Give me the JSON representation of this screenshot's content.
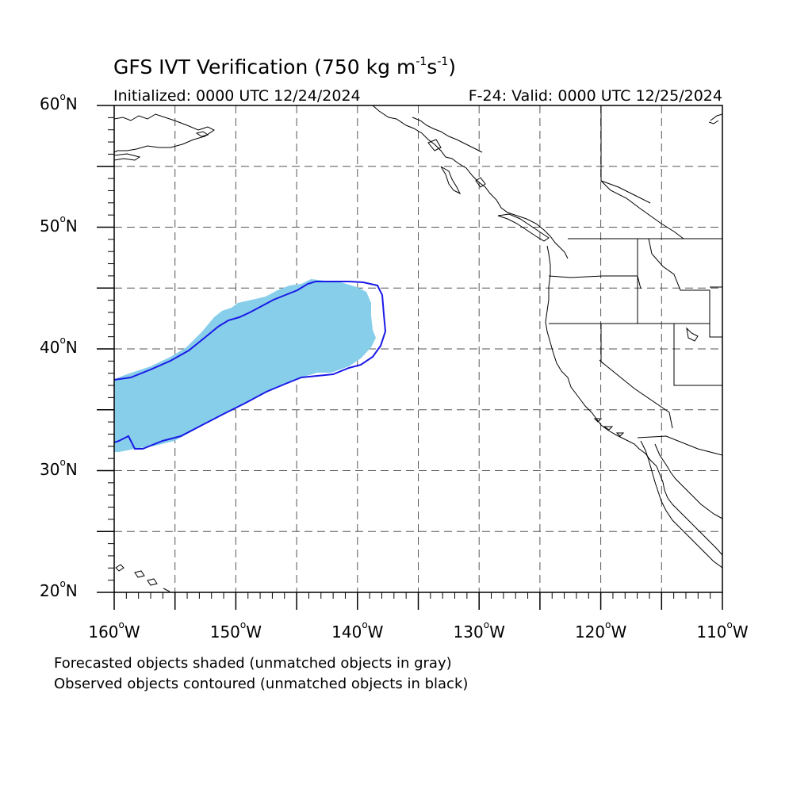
{
  "title": {
    "main": "GFS IVT Verification (750 kg m",
    "exp1": "-1",
    "mid": "s",
    "exp2": "-1",
    "end": ")"
  },
  "subtitle": {
    "left": "Initialized: 0000 UTC 12/24/2024",
    "right": "F-24: Valid: 0000 UTC 12/25/2024"
  },
  "latitude_labels": [
    {
      "text": "60",
      "suffix": "N",
      "lat": 60
    },
    {
      "text": "50",
      "suffix": "N",
      "lat": 50
    },
    {
      "text": "40",
      "suffix": "N",
      "lat": 40
    },
    {
      "text": "30",
      "suffix": "N",
      "lat": 30
    },
    {
      "text": "20",
      "suffix": "N",
      "lat": 20
    }
  ],
  "longitude_labels": [
    {
      "text": "160",
      "suffix": "W",
      "lon": -160
    },
    {
      "text": "150",
      "suffix": "W",
      "lon": -150
    },
    {
      "text": "140",
      "suffix": "W",
      "lon": -140
    },
    {
      "text": "130",
      "suffix": "W",
      "lon": -130
    },
    {
      "text": "120",
      "suffix": "W",
      "lon": -120
    },
    {
      "text": "110",
      "suffix": "W",
      "lon": -110
    }
  ],
  "map": {
    "lon_range": [
      -160,
      -110
    ],
    "lat_range": [
      20,
      60
    ],
    "grid_interval_deg": 5,
    "forecast_color": "#87ceeb",
    "observed_color": "#1a1ae6",
    "coast_color": "#000000"
  },
  "footnotes": {
    "line1": "Forecasted objects shaded (unmatched objects in gray)",
    "line2": "Observed objects contoured (unmatched objects in black)"
  }
}
